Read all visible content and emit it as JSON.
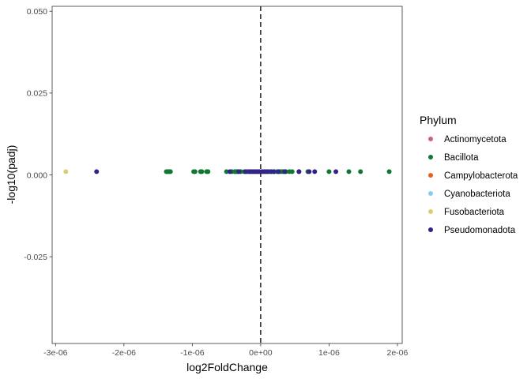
{
  "chart_data": {
    "type": "scatter",
    "xlabel": "log2FoldChange",
    "ylabel": "-log10(padj)",
    "xlim": [
      -3.05e-06,
      2.07e-06
    ],
    "ylim": [
      -0.0515,
      0.0515
    ],
    "x_ticks": [
      {
        "value": -3e-06,
        "label": "-3e-06"
      },
      {
        "value": -2e-06,
        "label": "-2e-06"
      },
      {
        "value": -1e-06,
        "label": "-1e-06"
      },
      {
        "value": 0,
        "label": "0e+00"
      },
      {
        "value": 1e-06,
        "label": "1e-06"
      },
      {
        "value": 2e-06,
        "label": "2e-06"
      }
    ],
    "y_ticks": [
      {
        "value": -0.025,
        "label": "-0.025"
      },
      {
        "value": 0,
        "label": "0.000"
      },
      {
        "value": 0.025,
        "label": "0.025"
      },
      {
        "value": 0.05,
        "label": "0.050"
      }
    ],
    "grid": false,
    "vline": {
      "x": 0,
      "style": "dashed"
    },
    "legend": {
      "title": "Phylum",
      "position": "right"
    },
    "series": [
      {
        "name": "Actinomycetota",
        "color": "#CC6677",
        "x": [],
        "y": []
      },
      {
        "name": "Bacillota",
        "color": "#117733",
        "x": [
          -1.38e-06,
          -1.36e-06,
          -1.34e-06,
          -1.32e-06,
          -9.8e-07,
          -9.6e-07,
          -8.8e-07,
          -8.6e-07,
          -7.9e-07,
          -7.7e-07,
          -5e-07,
          -4.2e-07,
          -3.8e-07,
          -3.6e-07,
          -3.4e-07,
          -2.9e-07,
          -2.4e-07,
          -2e-07,
          -1.6e-07,
          -1.2e-07,
          -8e-08,
          -4e-08,
          4e-08,
          8e-08,
          1.2e-07,
          1.6e-07,
          2e-07,
          2.4e-07,
          2.7e-07,
          3e-07,
          3.3e-07,
          3.7e-07,
          4.2e-07,
          4.6e-07,
          5.6e-07,
          6.9e-07,
          1e-06,
          1.29e-06,
          1.46e-06,
          1.88e-06
        ],
        "y": [
          0.001,
          0.001,
          0.001,
          0.001,
          0.001,
          0.001,
          0.001,
          0.001,
          0.001,
          0.001,
          0.001,
          0.001,
          0.001,
          0.001,
          0.001,
          0.001,
          0.001,
          0.001,
          0.001,
          0.001,
          0.001,
          0.001,
          0.001,
          0.001,
          0.001,
          0.001,
          0.001,
          0.001,
          0.001,
          0.001,
          0.001,
          0.001,
          0.001,
          0.001,
          0.001,
          0.001,
          0.001,
          0.001,
          0.001,
          0.001
        ]
      },
      {
        "name": "Campylobacterota",
        "color": "#E8601C",
        "x": [],
        "y": []
      },
      {
        "name": "Cyanobacteriota",
        "color": "#88CCEE",
        "x": [],
        "y": []
      },
      {
        "name": "Fusobacteriota",
        "color": "#DDCC77",
        "x": [
          -2.85e-06
        ],
        "y": [
          0.001
        ]
      },
      {
        "name": "Pseudomonadota",
        "color": "#332288",
        "x": [
          -2.4e-06,
          -4.5e-07,
          -3.2e-07,
          -2.2e-07,
          -1.7e-07,
          -1.4e-07,
          -1e-07,
          -6e-08,
          -2e-08,
          2e-08,
          6e-08,
          1e-07,
          1.5e-07,
          1.9e-07,
          2.6e-07,
          3.5e-07,
          5.6e-07,
          7.1e-07,
          7.9e-07,
          1.1e-06
        ],
        "y": [
          0.001,
          0.001,
          0.001,
          0.001,
          0.001,
          0.001,
          0.001,
          0.001,
          0.001,
          0.001,
          0.001,
          0.001,
          0.001,
          0.001,
          0.001,
          0.001,
          0.001,
          0.001,
          0.001,
          0.001
        ]
      }
    ]
  }
}
